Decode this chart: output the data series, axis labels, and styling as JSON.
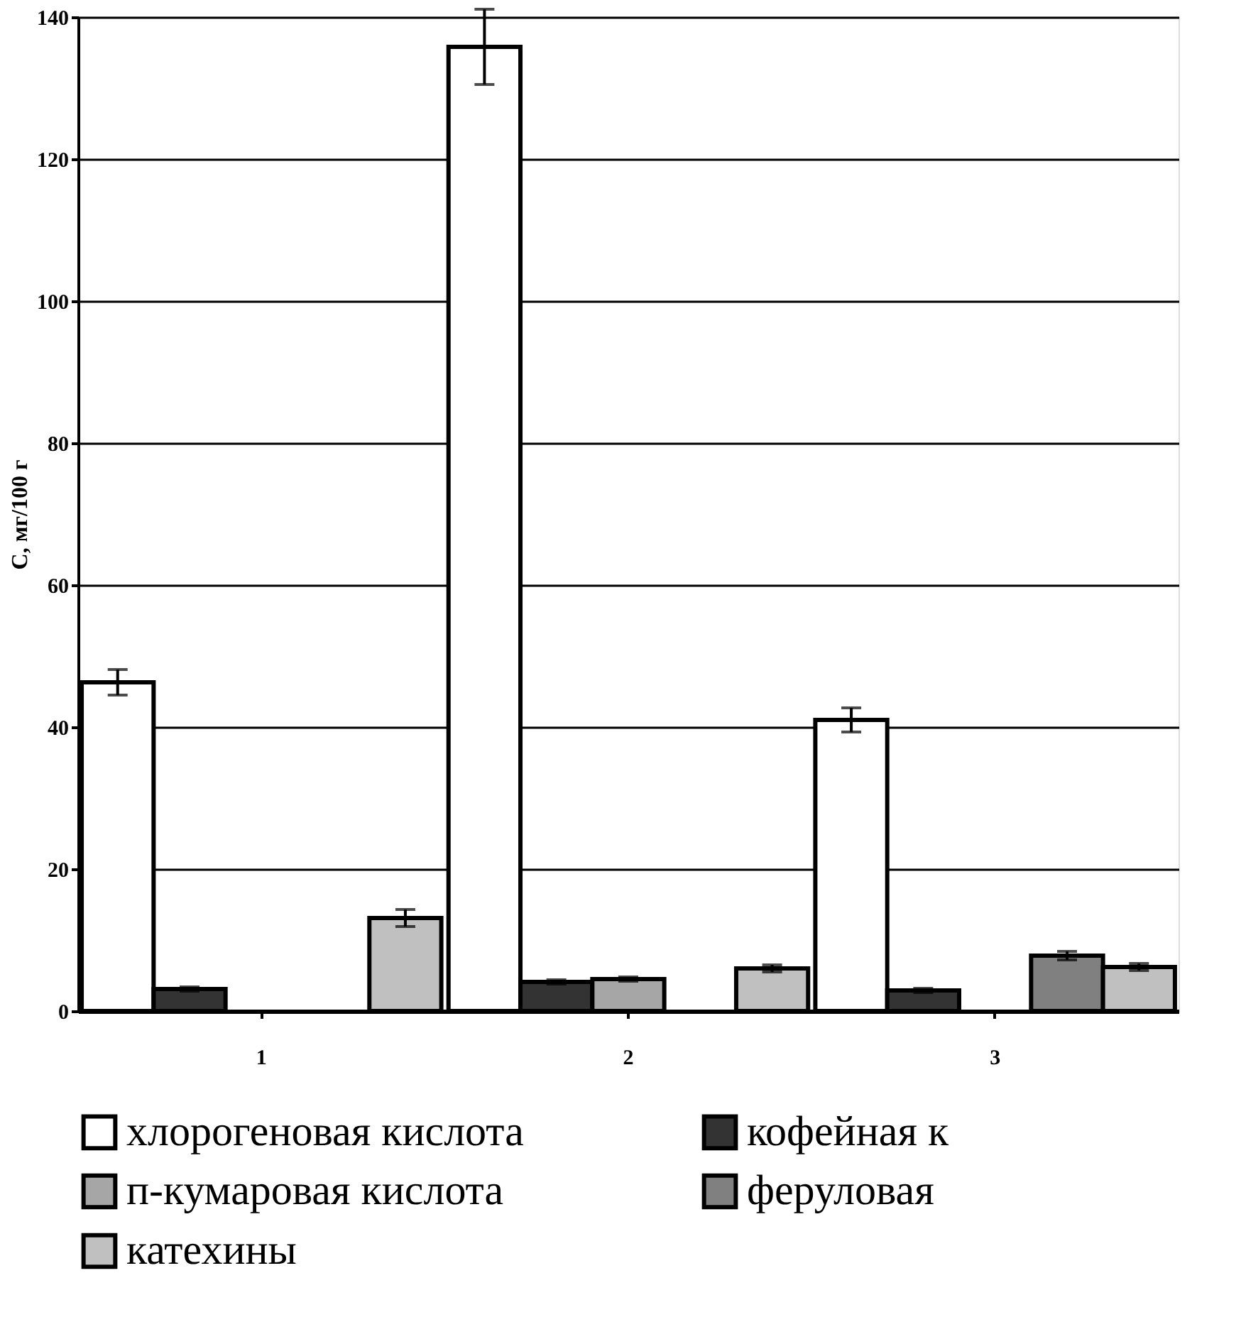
{
  "chart_data": {
    "type": "bar",
    "ylabel": "C, мг/100 г",
    "categories": [
      "1",
      "2",
      "3"
    ],
    "series": [
      {
        "name": "хлорогеновая кислота",
        "color": "#ffffff",
        "values": [
          46.3,
          135.8,
          41.0
        ],
        "errors": [
          1.8,
          5.3,
          1.7
        ]
      },
      {
        "name": "кофейная к",
        "color": "#333333",
        "values": [
          3.1,
          4.1,
          2.9
        ],
        "errors": [
          0.3,
          0.3,
          0.3
        ]
      },
      {
        "name": "п-кумаровая кислота",
        "color": "#a6a6a6",
        "values": [
          null,
          4.5,
          null
        ],
        "errors": [
          null,
          0.3,
          null
        ]
      },
      {
        "name": "феруловая",
        "color": "#808080",
        "values": [
          null,
          null,
          7.8
        ],
        "errors": [
          null,
          null,
          0.6
        ]
      },
      {
        "name": "катехины",
        "color": "#c0c0c0",
        "values": [
          13.1,
          6.0,
          6.2
        ],
        "errors": [
          1.2,
          0.5,
          0.5
        ]
      }
    ],
    "ylim": [
      0,
      140
    ],
    "yticks": [
      0,
      20,
      40,
      60,
      80,
      100,
      120,
      140
    ],
    "grid": "y",
    "legend": "bottom"
  }
}
